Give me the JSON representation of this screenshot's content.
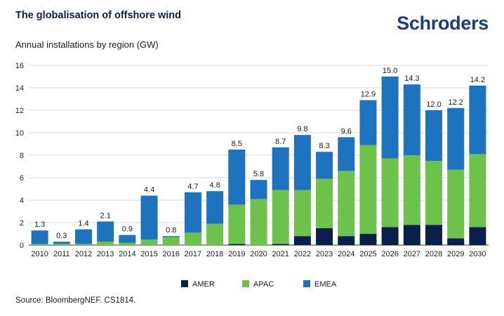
{
  "title": "The globalisation of offshore wind",
  "brand": "Schroders",
  "footer": "Source: BloombergNEF. CS1814.",
  "colors": {
    "AMER": "#0b1f4b",
    "APAC": "#6cc24a",
    "EMEA": "#1e73be",
    "grid": "#d9d9d9",
    "axis": "#333333"
  },
  "chart_data": {
    "type": "bar",
    "stacked": true,
    "title": "",
    "subtitle": "Annual installations by region (GW)",
    "xlabel": "",
    "ylabel": "",
    "ylim": [
      0,
      16
    ],
    "yticks": [
      0,
      2,
      4,
      6,
      8,
      10,
      12,
      14,
      16
    ],
    "grid": true,
    "legend": "bottom-center",
    "categories": [
      "2010",
      "2011",
      "2012",
      "2013",
      "2014",
      "2015",
      "2016",
      "2017",
      "2018",
      "2019",
      "2020",
      "2021",
      "2022",
      "2023",
      "2024",
      "2025",
      "2026",
      "2027",
      "2028",
      "2029",
      "2030"
    ],
    "series": [
      {
        "name": "AMER",
        "values": [
          0,
          0,
          0,
          0,
          0,
          0,
          0,
          0,
          0,
          0.1,
          0,
          0.1,
          0.8,
          1.5,
          0.8,
          1.0,
          1.6,
          1.8,
          1.8,
          0.6,
          1.6
        ]
      },
      {
        "name": "APAC",
        "values": [
          0.1,
          0.1,
          0.1,
          0.3,
          0.2,
          0.5,
          0.7,
          1.1,
          1.9,
          3.5,
          4.1,
          4.8,
          4.1,
          4.4,
          5.8,
          7.9,
          6.1,
          6.2,
          5.7,
          6.1,
          6.5
        ]
      },
      {
        "name": "EMEA",
        "values": [
          1.2,
          0.2,
          1.3,
          1.8,
          0.7,
          3.9,
          0.1,
          3.6,
          2.9,
          4.9,
          1.7,
          3.8,
          4.9,
          2.4,
          3.0,
          4.0,
          7.3,
          6.3,
          4.5,
          5.5,
          6.1
        ]
      }
    ],
    "totals": [
      "1.3",
      "0.3",
      "1.4",
      "2.1",
      "0.9",
      "4.4",
      "0.8",
      "4.7",
      "4.8",
      "8.5",
      "5.8",
      "8.7",
      "9.8",
      "8.3",
      "9.6",
      "12.9",
      "15.0",
      "14.3",
      "12.0",
      "12.2",
      "14.2"
    ]
  }
}
